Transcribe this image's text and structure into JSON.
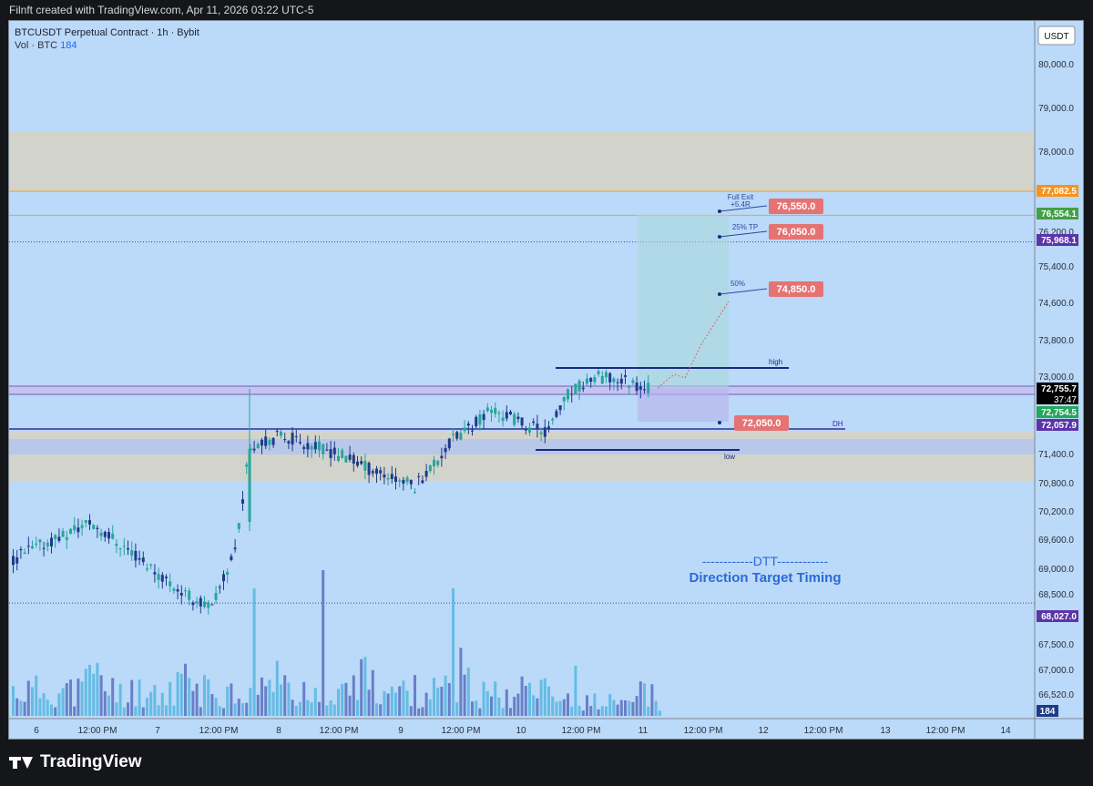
{
  "header": {
    "attribution": "Filnft created with TradingView.com, Apr 11, 2026 03:22 UTC-5"
  },
  "legend": {
    "symbol": "BTCUSDT Perpetual Contract · 1h · Bybit",
    "volume_label": "Vol · BTC",
    "volume_value": "184"
  },
  "footer": {
    "brand": "TradingView"
  },
  "chart_data": {
    "type": "candlestick",
    "currency_button": "USDT",
    "y_axis": {
      "ticks": [
        "80,000.0",
        "79,000.0",
        "78,000.0",
        "76,200.0",
        "75,400.0",
        "74,600.0",
        "73,800.0",
        "73,000.0",
        "71,400.0",
        "70,800.0",
        "70,200.0",
        "69,600.0",
        "69,000.0",
        "68,500.0",
        "67,500.0",
        "67,000.0",
        "66,520.0"
      ]
    },
    "x_axis": {
      "ticks": [
        "6",
        "12:00 PM",
        "7",
        "12:00 PM",
        "8",
        "12:00 PM",
        "9",
        "12:00 PM",
        "10",
        "12:00 PM",
        "11",
        "12:00 PM",
        "12",
        "12:00 PM",
        "13",
        "12:00 PM",
        "14"
      ]
    },
    "price_tags": [
      {
        "label": "77,082.5",
        "price": 77082.5,
        "color": "#f7931a"
      },
      {
        "label": "76,554.1",
        "price": 76554.1,
        "color": "#43a047"
      },
      {
        "label": "75,968.1",
        "price": 75968.1,
        "color": "#5b35a8"
      },
      {
        "label": "72,755.7",
        "price": 72755.7,
        "color": "#000000",
        "sub": "37:47"
      },
      {
        "label": "72,754.5",
        "price": 72754.5,
        "color": "#26a65b"
      },
      {
        "label": "72,057.9",
        "price": 72057.9,
        "color": "#5b35a8"
      },
      {
        "label": "68,027.0",
        "price": 68027.0,
        "color": "#5b35a8"
      },
      {
        "label": "184",
        "volume": 184,
        "color": "#1e3a8a"
      }
    ],
    "zones": [
      {
        "from": 77082.5,
        "to": 78400
      },
      {
        "from": 70700,
        "to": 71800
      }
    ],
    "targets": [
      {
        "label": "76,550.0",
        "price": 76550,
        "note": [
          "Full Exit",
          "+5.4R"
        ]
      },
      {
        "label": "76,050.0",
        "price": 76050,
        "note": [
          "25% TP"
        ]
      },
      {
        "label": "74,850.0",
        "price": 74850,
        "note": [
          "50%"
        ]
      },
      {
        "label": "72,050.0",
        "price": 72050,
        "note": []
      }
    ],
    "level_labels": {
      "high": "high",
      "low": "low",
      "dh": "DH"
    },
    "watermark": {
      "line1": "------------DTT------------",
      "line2": "Direction Target Timing"
    },
    "colors": {
      "bull": "#26a69a",
      "bear": "#1e3a8a",
      "target_bg": "#e57373",
      "zone": "#d6d2c4"
    }
  }
}
